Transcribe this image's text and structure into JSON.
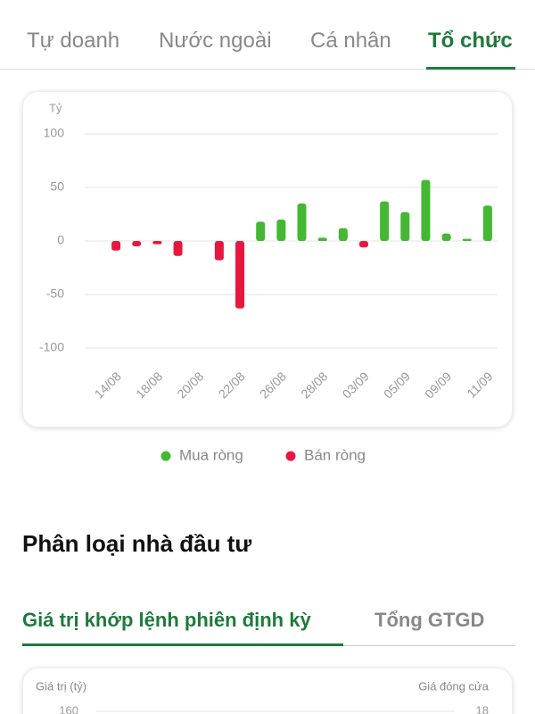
{
  "tabs": [
    "Tự doanh",
    "Nước ngoài",
    "Cá nhân",
    "Tổ chức"
  ],
  "chart_data": [
    {
      "type": "bar",
      "y_label": "Tỷ",
      "categories": [
        "14/08",
        null,
        "18/08",
        null,
        "20/08",
        null,
        "22/08",
        null,
        "26/08",
        null,
        "28/08",
        null,
        "03/09",
        null,
        "05/09",
        null,
        "09/09",
        null,
        "11/09"
      ],
      "series": [
        {
          "name": "Mua ròng",
          "color": "#44b833",
          "values": [
            null,
            null,
            null,
            null,
            0,
            null,
            null,
            18,
            20,
            35,
            3,
            12,
            null,
            37,
            27,
            57,
            7,
            2,
            33
          ]
        },
        {
          "name": "Bán ròng",
          "color": "#e8173f",
          "values": [
            -9,
            -5,
            -3,
            -14,
            null,
            -18,
            -63,
            null,
            null,
            null,
            null,
            null,
            -6,
            null,
            null,
            null,
            null,
            null,
            null
          ]
        }
      ],
      "ylim": [
        -100,
        100
      ],
      "yticks": [
        -100,
        -50,
        0,
        50,
        100
      ],
      "grid": true
    },
    {
      "type": "line",
      "y_label": "Giá trị (tỷ)",
      "y2_label": "Giá đóng cửa",
      "yticks": [
        160
      ],
      "y2ticks": [
        18
      ]
    }
  ],
  "section_title": "Phân loại nhà đầu tư",
  "subtabs": [
    "Giá trị khớp lệnh phiên định kỳ",
    "Tổng GTGD"
  ]
}
